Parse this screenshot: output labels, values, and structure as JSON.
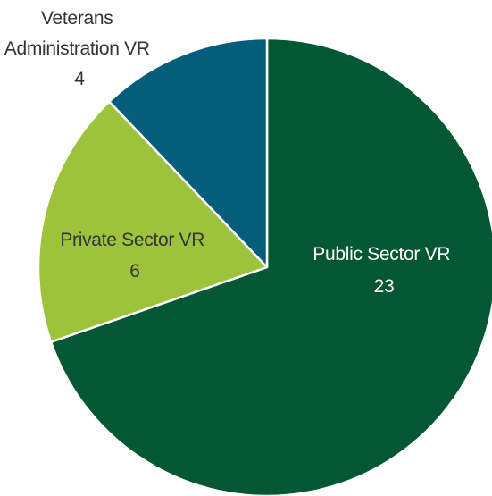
{
  "chart_data": {
    "type": "pie",
    "title": "",
    "slices": [
      {
        "label": "Public Sector VR",
        "value": 23,
        "color": "#035833",
        "label_color": "#ffffff"
      },
      {
        "label": "Private Sector VR",
        "value": 6,
        "color": "#9cc33b",
        "label_color": "#333333"
      },
      {
        "label": "Veterans Administration VR",
        "value": 4,
        "color": "#055d7c",
        "label_color": "#333333"
      }
    ],
    "start_position": "top",
    "direction": "clockwise",
    "slice_borders": "#ffffff",
    "legend": "none"
  }
}
